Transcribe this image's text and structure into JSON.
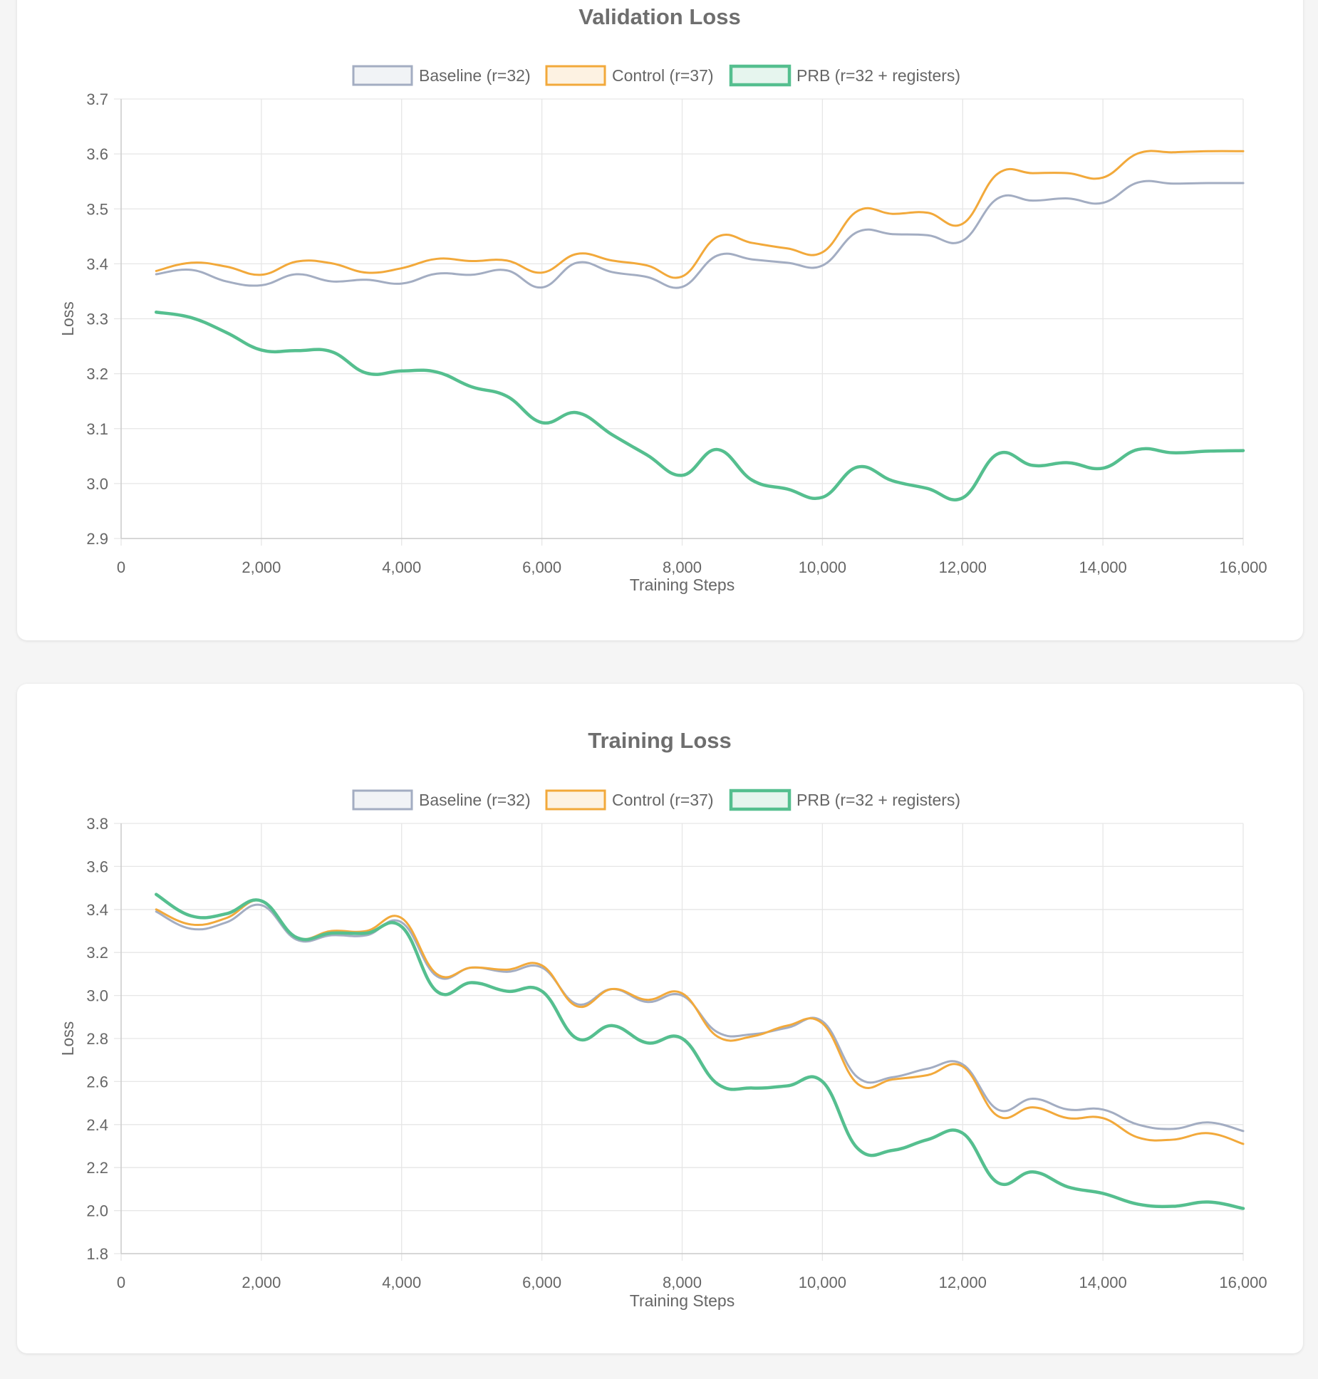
{
  "colors": {
    "baseline": "#a3adc2",
    "control": "#f2a93b",
    "prb": "#55bf8f",
    "text": "#666666",
    "title": "#6e6e6e",
    "grid": "#e6e6e6"
  },
  "chart_data": [
    {
      "type": "line",
      "title": "Validation Loss",
      "xlabel": "Training Steps",
      "ylabel": "Loss",
      "xlim": [
        0,
        16000
      ],
      "ylim": [
        2.9,
        3.7
      ],
      "xticks": [
        0,
        2000,
        4000,
        6000,
        8000,
        10000,
        12000,
        14000,
        16000
      ],
      "xtick_labels": [
        "0",
        "2,000",
        "4,000",
        "6,000",
        "8,000",
        "10,000",
        "12,000",
        "14,000",
        "16,000"
      ],
      "yticks": [
        2.9,
        3.0,
        3.1,
        3.2,
        3.3,
        3.4,
        3.5,
        3.6,
        3.7
      ],
      "ytick_labels": [
        "2.9",
        "3.0",
        "3.1",
        "3.2",
        "3.3",
        "3.4",
        "3.5",
        "3.6",
        "3.7"
      ],
      "grid": true,
      "legend": "top",
      "x": [
        500,
        1000,
        1500,
        2000,
        2500,
        3000,
        3500,
        4000,
        4500,
        5000,
        5500,
        6000,
        6500,
        7000,
        7500,
        8000,
        8500,
        9000,
        9500,
        10000,
        10500,
        11000,
        11500,
        12000,
        12500,
        13000,
        13500,
        14000,
        14500,
        15000,
        15500,
        16000
      ],
      "series": [
        {
          "name": "Baseline (r=32)",
          "color_key": "baseline",
          "values": [
            3.381,
            3.389,
            3.368,
            3.361,
            3.381,
            3.368,
            3.371,
            3.364,
            3.382,
            3.38,
            3.388,
            3.357,
            3.402,
            3.385,
            3.376,
            3.358,
            3.415,
            3.408,
            3.402,
            3.397,
            3.458,
            3.454,
            3.452,
            3.442,
            3.519,
            3.515,
            3.519,
            3.511,
            3.548,
            3.546,
            3.547,
            3.547
          ]
        },
        {
          "name": "Control (r=37)",
          "color_key": "control",
          "values": [
            3.387,
            3.402,
            3.395,
            3.38,
            3.404,
            3.401,
            3.384,
            3.392,
            3.409,
            3.405,
            3.406,
            3.384,
            3.418,
            3.406,
            3.397,
            3.377,
            3.449,
            3.438,
            3.428,
            3.421,
            3.496,
            3.491,
            3.493,
            3.473,
            3.564,
            3.565,
            3.565,
            3.557,
            3.601,
            3.603,
            3.605,
            3.605
          ]
        },
        {
          "name": "PRB (r=32 + registers)",
          "color_key": "prb",
          "values": [
            3.312,
            3.302,
            3.275,
            3.243,
            3.242,
            3.24,
            3.201,
            3.205,
            3.203,
            3.176,
            3.159,
            3.111,
            3.129,
            3.089,
            3.052,
            3.015,
            3.062,
            3.006,
            2.99,
            2.975,
            3.03,
            3.005,
            2.991,
            2.974,
            3.054,
            3.033,
            3.038,
            3.028,
            3.062,
            3.056,
            3.059,
            3.06
          ]
        }
      ]
    },
    {
      "type": "line",
      "title": "Training Loss",
      "xlabel": "Training Steps",
      "ylabel": "Loss",
      "xlim": [
        0,
        16000
      ],
      "ylim": [
        1.8,
        3.8
      ],
      "xticks": [
        0,
        2000,
        4000,
        6000,
        8000,
        10000,
        12000,
        14000,
        16000
      ],
      "xtick_labels": [
        "0",
        "2,000",
        "4,000",
        "6,000",
        "8,000",
        "10,000",
        "12,000",
        "14,000",
        "16,000"
      ],
      "yticks": [
        1.8,
        2.0,
        2.2,
        2.4,
        2.6,
        2.8,
        3.0,
        3.2,
        3.4,
        3.6,
        3.8
      ],
      "ytick_labels": [
        "1.8",
        "2.0",
        "2.2",
        "2.4",
        "2.6",
        "2.8",
        "3.0",
        "3.2",
        "3.4",
        "3.6",
        "3.8"
      ],
      "grid": true,
      "legend": "top",
      "x": [
        500,
        1000,
        1500,
        2000,
        2500,
        3000,
        3500,
        4000,
        4500,
        5000,
        5500,
        6000,
        6500,
        7000,
        7500,
        8000,
        8500,
        9000,
        9500,
        10000,
        10500,
        11000,
        11500,
        12000,
        12500,
        13000,
        13500,
        14000,
        14500,
        15000,
        15500,
        16000
      ],
      "series": [
        {
          "name": "Baseline (r=32)",
          "color_key": "baseline",
          "values": [
            3.39,
            3.31,
            3.34,
            3.42,
            3.26,
            3.28,
            3.28,
            3.34,
            3.09,
            3.13,
            3.11,
            3.13,
            2.96,
            3.03,
            2.97,
            3.0,
            2.83,
            2.82,
            2.85,
            2.88,
            2.62,
            2.62,
            2.66,
            2.68,
            2.47,
            2.52,
            2.47,
            2.47,
            2.4,
            2.38,
            2.41,
            2.37
          ]
        },
        {
          "name": "Control (r=37)",
          "color_key": "control",
          "values": [
            3.4,
            3.33,
            3.36,
            3.44,
            3.27,
            3.3,
            3.3,
            3.36,
            3.1,
            3.13,
            3.12,
            3.14,
            2.95,
            3.03,
            2.98,
            3.01,
            2.81,
            2.81,
            2.86,
            2.87,
            2.59,
            2.61,
            2.63,
            2.67,
            2.44,
            2.48,
            2.43,
            2.43,
            2.34,
            2.33,
            2.36,
            2.31
          ]
        },
        {
          "name": "PRB (r=32 + registers)",
          "color_key": "prb",
          "values": [
            3.47,
            3.37,
            3.38,
            3.44,
            3.27,
            3.29,
            3.29,
            3.32,
            3.02,
            3.06,
            3.02,
            3.02,
            2.8,
            2.86,
            2.78,
            2.8,
            2.59,
            2.57,
            2.58,
            2.6,
            2.29,
            2.28,
            2.33,
            2.36,
            2.13,
            2.18,
            2.11,
            2.08,
            2.03,
            2.02,
            2.04,
            2.01
          ]
        }
      ]
    }
  ]
}
